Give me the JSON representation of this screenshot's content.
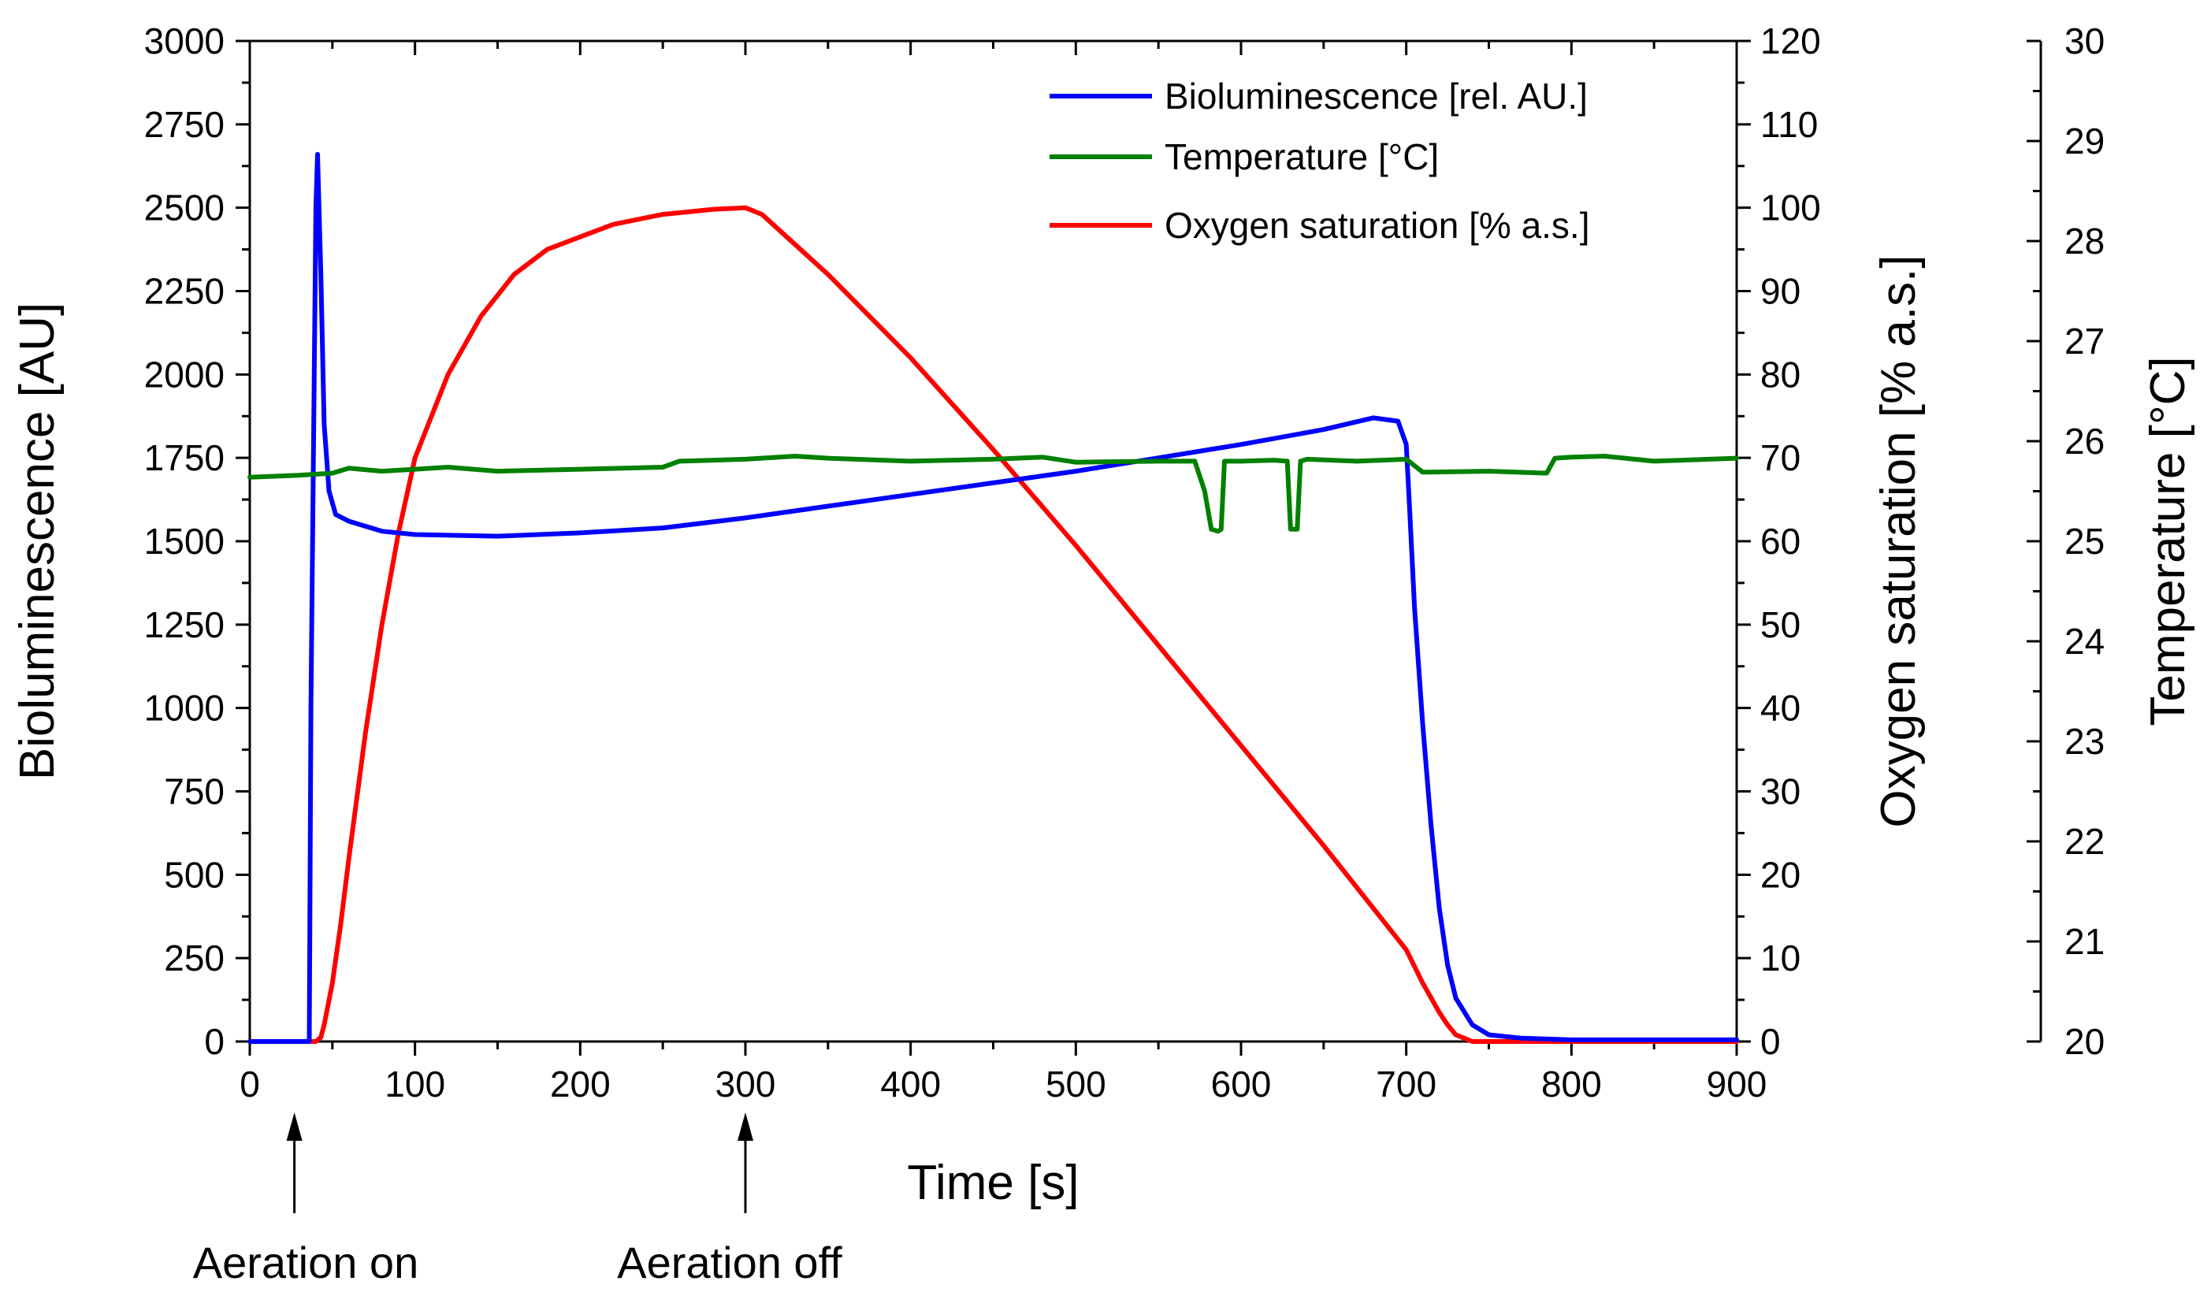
{
  "chart_data": {
    "type": "line",
    "xlabel": "Time [s]",
    "xlim": [
      0,
      900
    ],
    "x_ticks": [
      "0",
      "100",
      "200",
      "300",
      "400",
      "500",
      "600",
      "700",
      "800",
      "900"
    ],
    "axes": {
      "left": {
        "label": "Bioluminescence [AU]",
        "lim": [
          0,
          3000
        ],
        "ticks": [
          "0",
          "250",
          "500",
          "750",
          "1000",
          "1250",
          "1500",
          "1750",
          "2000",
          "2250",
          "2500",
          "2750",
          "3000"
        ]
      },
      "right1": {
        "label": "Oxygen saturation [% a.s.]",
        "lim": [
          0,
          120
        ],
        "ticks": [
          "0",
          "10",
          "20",
          "30",
          "40",
          "50",
          "60",
          "70",
          "80",
          "90",
          "100",
          "110",
          "120"
        ]
      },
      "right2": {
        "label": "Temperature [°C]",
        "lim": [
          20,
          30
        ],
        "ticks": [
          "20",
          "21",
          "22",
          "23",
          "24",
          "25",
          "26",
          "27",
          "28",
          "29",
          "30"
        ]
      }
    },
    "legend_position": "top-right",
    "grid": false,
    "series": [
      {
        "name": "Bioluminescence [rel. AU.]",
        "axis": "left",
        "color": "#0000ff",
        "x": [
          0,
          36,
          37,
          40,
          41,
          43,
          45,
          48,
          52,
          60,
          80,
          100,
          150,
          200,
          250,
          300,
          350,
          400,
          450,
          500,
          550,
          600,
          650,
          680,
          695,
          700,
          702,
          705,
          710,
          715,
          720,
          725,
          730,
          740,
          750,
          770,
          800,
          900
        ],
        "y": [
          0,
          0,
          1000,
          2500,
          2660,
          2300,
          1850,
          1650,
          1580,
          1560,
          1530,
          1520,
          1515,
          1525,
          1540,
          1570,
          1605,
          1640,
          1675,
          1710,
          1750,
          1790,
          1835,
          1870,
          1860,
          1790,
          1600,
          1300,
          950,
          650,
          400,
          230,
          130,
          50,
          20,
          10,
          5,
          5
        ]
      },
      {
        "name": "Temperature [°C]",
        "axis": "right2",
        "color": "#008000",
        "x": [
          0,
          30,
          50,
          60,
          80,
          100,
          120,
          150,
          200,
          250,
          260,
          300,
          330,
          350,
          400,
          450,
          480,
          500,
          550,
          572,
          578,
          582,
          586,
          588,
          590,
          600,
          620,
          628,
          630,
          632,
          634,
          636,
          640,
          670,
          700,
          710,
          750,
          785,
          790,
          800,
          820,
          850,
          900
        ],
        "y": [
          25.64,
          25.66,
          25.68,
          25.73,
          25.7,
          25.72,
          25.74,
          25.7,
          25.72,
          25.74,
          25.8,
          25.82,
          25.85,
          25.83,
          25.8,
          25.82,
          25.84,
          25.79,
          25.8,
          25.8,
          25.5,
          25.12,
          25.1,
          25.12,
          25.8,
          25.8,
          25.81,
          25.8,
          25.12,
          25.12,
          25.12,
          25.8,
          25.82,
          25.8,
          25.82,
          25.69,
          25.7,
          25.68,
          25.83,
          25.84,
          25.85,
          25.8,
          25.83
        ]
      },
      {
        "name": "Oxygen saturation [% a.s.]",
        "axis": "right1",
        "color": "#ff0000",
        "x": [
          0,
          40,
          43,
          45,
          50,
          55,
          60,
          70,
          80,
          90,
          100,
          120,
          140,
          160,
          180,
          200,
          220,
          250,
          280,
          300,
          310,
          350,
          400,
          450,
          500,
          550,
          600,
          650,
          700,
          710,
          720,
          725,
          730,
          740,
          900
        ],
        "y": [
          0,
          0,
          0.5,
          2,
          7,
          14,
          22,
          37,
          50,
          61,
          70,
          80,
          87,
          92,
          95,
          96.5,
          98,
          99.2,
          99.8,
          100,
          99.2,
          92,
          82,
          71,
          59.5,
          47.5,
          35.5,
          23.5,
          11,
          7,
          3.5,
          2,
          0.8,
          0,
          0
        ]
      }
    ],
    "annotations": [
      {
        "text": "Aeration on",
        "x": 27
      },
      {
        "text": "Aeration off",
        "x": 300
      }
    ]
  }
}
